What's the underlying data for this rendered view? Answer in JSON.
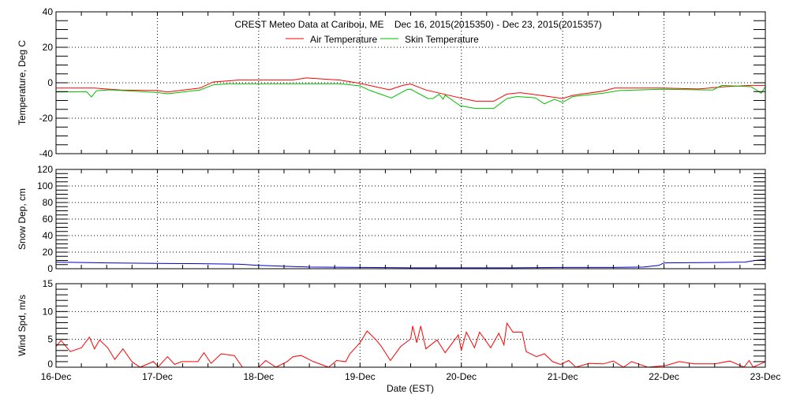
{
  "title": "CREST Meteo Data at Caribou, ME    Dec 16, 2015(2015350) - Dec 23, 2015(2015357)",
  "xlabel": "Date (EST)",
  "x_ticks": [
    "16-Dec",
    "17-Dec",
    "18-Dec",
    "19-Dec",
    "20-Dec",
    "21-Dec",
    "22-Dec",
    "23-Dec"
  ],
  "colors": {
    "air": "#ff0000",
    "skin": "#00c000",
    "snow": "#0000cc",
    "wind": "#ff0000",
    "axis": "#000000"
  },
  "chart_data": [
    {
      "type": "line",
      "ylabel": "Temperature, Deg C",
      "ylim": [
        -40,
        40
      ],
      "y_ticks": [
        "40",
        "20",
        "0",
        "-20",
        "-40"
      ],
      "grid": true,
      "legend": "top-center",
      "x_unit": "days since 16-Dec",
      "series": [
        {
          "name": "Air Temperature",
          "color": "#ff0000",
          "x": [
            0,
            0.38,
            0.64,
            1.0,
            1.1,
            1.42,
            1.55,
            1.8,
            2.33,
            2.47,
            2.8,
            3.0,
            3.29,
            3.42,
            3.5,
            3.65,
            3.99,
            4.14,
            4.32,
            4.45,
            4.58,
            4.78,
            5.0,
            5.1,
            5.4,
            5.51,
            5.98,
            6.34,
            6.6,
            6.86,
            7.0
          ],
          "y": [
            -3.0,
            -3.0,
            -4.1,
            -4.4,
            -5.2,
            -3.0,
            0.4,
            1.5,
            1.5,
            2.7,
            1.5,
            -0.3,
            -4.0,
            -1.5,
            -0.7,
            -4.1,
            -8.6,
            -10.4,
            -10.4,
            -6.4,
            -5.6,
            -7.1,
            -8.9,
            -7.1,
            -4.7,
            -3.0,
            -3.0,
            -3.5,
            -2.2,
            -1.5,
            -1.5
          ]
        },
        {
          "name": "Skin Temperature",
          "color": "#00c000",
          "x": [
            0,
            0.3,
            0.35,
            0.4,
            0.53,
            1.0,
            1.1,
            1.42,
            1.55,
            1.71,
            2.8,
            3.0,
            3.1,
            3.31,
            3.46,
            3.5,
            3.67,
            3.72,
            3.78,
            3.82,
            3.84,
            3.99,
            4.14,
            4.32,
            4.45,
            4.55,
            4.73,
            4.82,
            4.92,
            5.0,
            5.1,
            5.4,
            5.56,
            5.98,
            6.48,
            6.57,
            6.86,
            6.96,
            7.0
          ],
          "y": [
            -5.2,
            -5.0,
            -8.0,
            -4.5,
            -4.0,
            -5.5,
            -6.2,
            -4.1,
            -1.2,
            -0.6,
            -0.6,
            -1.8,
            -4.4,
            -8.6,
            -3.9,
            -3.7,
            -8.9,
            -8.9,
            -6.5,
            -9.3,
            -7.0,
            -13.0,
            -14.5,
            -14.5,
            -8.9,
            -7.8,
            -8.5,
            -11.9,
            -9.3,
            -11.1,
            -7.8,
            -5.9,
            -4.4,
            -3.7,
            -4.1,
            -1.5,
            -2.2,
            -5.9,
            -2.2
          ]
        }
      ]
    },
    {
      "type": "line",
      "ylabel": "Snow Dep, cm",
      "ylim": [
        0,
        120
      ],
      "y_ticks": [
        "120",
        "100",
        "80",
        "60",
        "40",
        "20",
        "0"
      ],
      "grid": true,
      "series": [
        {
          "color": "#0000cc",
          "x": [
            0,
            0.5,
            1.0,
            1.5,
            1.8,
            2.0,
            2.5,
            3.0,
            3.5,
            4.0,
            4.5,
            5.0,
            5.5,
            5.8,
            5.95,
            6.0,
            6.5,
            6.8,
            6.9,
            7.0
          ],
          "y": [
            8,
            7,
            6.5,
            6,
            5.5,
            4,
            2,
            1.5,
            1,
            1,
            1,
            1.5,
            1.5,
            2,
            4,
            7,
            7.5,
            8,
            10,
            11
          ]
        }
      ]
    },
    {
      "type": "line",
      "ylabel": "Wind Spd, m/s",
      "ylim": [
        0,
        15
      ],
      "y_ticks": [
        "15",
        "10",
        "5",
        "0"
      ],
      "grid": true,
      "series": [
        {
          "color": "#ff0000",
          "x": [
            0,
            0.05,
            0.14,
            0.25,
            0.33,
            0.38,
            0.43,
            0.51,
            0.58,
            0.66,
            0.75,
            0.83,
            0.96,
            1.01,
            1.1,
            1.17,
            1.24,
            1.4,
            1.46,
            1.53,
            1.63,
            1.76,
            1.84,
            2.0,
            2.07,
            2.17,
            2.28,
            2.34,
            2.42,
            2.54,
            2.69,
            2.77,
            2.86,
            2.9,
            3.0,
            3.07,
            3.16,
            3.21,
            3.3,
            3.4,
            3.5,
            3.52,
            3.56,
            3.6,
            3.65,
            3.76,
            3.84,
            3.97,
            4.0,
            4.05,
            4.13,
            4.18,
            4.29,
            4.37,
            4.42,
            4.45,
            4.51,
            4.6,
            4.64,
            4.74,
            4.82,
            4.9,
            4.98,
            5.06,
            5.13,
            5.26,
            5.4,
            5.5,
            5.6,
            5.68,
            5.84,
            6.02,
            6.15,
            6.3,
            6.5,
            6.65,
            6.79,
            6.84,
            6.88,
            7.0
          ],
          "y": [
            3.75,
            4.8,
            2.8,
            3.5,
            5.4,
            3.3,
            4.9,
            3.5,
            1.4,
            3.3,
            0.97,
            0,
            1.0,
            0.1,
            1.9,
            0.5,
            1.0,
            1.0,
            2.6,
            0.7,
            2.4,
            2.1,
            0,
            0,
            1.2,
            0,
            1.0,
            1.9,
            2.1,
            1.0,
            0,
            1.2,
            1.0,
            2.4,
            4.4,
            6.5,
            4.9,
            3.75,
            1.2,
            3.7,
            5.1,
            7.4,
            4.4,
            7.4,
            3.3,
            4.9,
            2.6,
            5.8,
            3.0,
            6.3,
            3.5,
            6.3,
            3.5,
            6.1,
            4.0,
            7.9,
            6.3,
            6.3,
            2.8,
            1.9,
            2.4,
            1.0,
            0.5,
            1.2,
            0,
            0.7,
            0.6,
            1.1,
            0,
            1.0,
            0,
            0.3,
            1.0,
            0.6,
            0.6,
            1.1,
            0,
            1.2,
            0,
            1.0
          ]
        }
      ]
    }
  ]
}
